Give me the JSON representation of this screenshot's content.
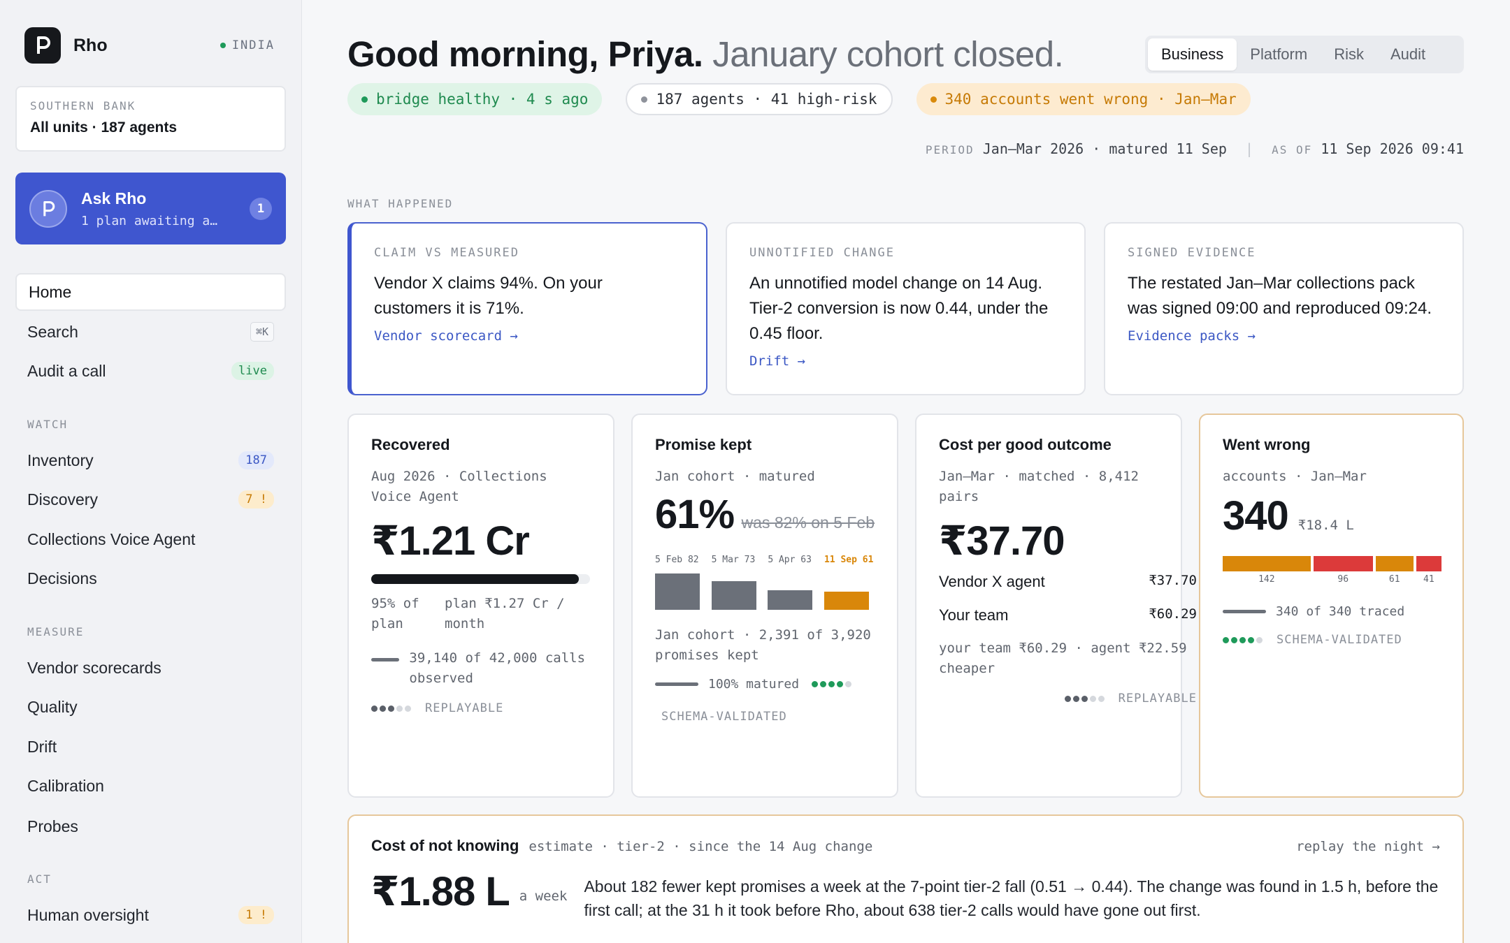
{
  "sidebar": {
    "brand": "Rho",
    "region": "INDIA",
    "org": {
      "label": "SOUTHERN BANK",
      "value": "All units · 187 agents"
    },
    "ask": {
      "title": "Ask Rho",
      "subtitle": "1 plan awaiting a…",
      "badge": "1"
    },
    "top_items": [
      {
        "label": "Home"
      },
      {
        "label": "Search",
        "shortcut": "⌘K"
      },
      {
        "label": "Audit a call",
        "badge": "live"
      }
    ],
    "watch": {
      "label": "WATCH",
      "items": [
        {
          "label": "Inventory",
          "badge": "187"
        },
        {
          "label": "Discovery",
          "badge": "7 !"
        },
        {
          "label": "Collections Voice Agent"
        },
        {
          "label": "Decisions"
        }
      ]
    },
    "measure": {
      "label": "MEASURE",
      "items": [
        {
          "label": "Vendor scorecards"
        },
        {
          "label": "Quality"
        },
        {
          "label": "Drift"
        },
        {
          "label": "Calibration"
        },
        {
          "label": "Probes"
        }
      ]
    },
    "act": {
      "label": "ACT",
      "items": [
        {
          "label": "Human oversight",
          "badge": "1 !"
        }
      ]
    }
  },
  "header": {
    "greeting": "Good morning, Priya.",
    "subtitle": "January cohort closed.",
    "tabs": [
      "Business",
      "Platform",
      "Risk",
      "Audit"
    ],
    "active_tab": "Business",
    "status": [
      {
        "text": "bridge healthy · 4 s ago",
        "tone": "ok"
      },
      {
        "text": "187 agents · 41 high-risk",
        "tone": "neutral"
      },
      {
        "text": "340 accounts went wrong · Jan–Mar",
        "tone": "warn"
      }
    ],
    "period_key": "PERIOD",
    "period_value": "Jan–Mar 2026 · matured 11 Sep",
    "asof_key": "AS OF",
    "asof_value": "11 Sep 2026 09:41"
  },
  "what_happened": {
    "label": "WHAT HAPPENED",
    "cards": [
      {
        "label": "CLAIM VS MEASURED",
        "text": "Vendor X claims 94%. On your customers it is 71%.",
        "link": "Vendor scorecard →"
      },
      {
        "label": "UNNOTIFIED CHANGE",
        "text": "An unnotified model change on 14 Aug. Tier-2 conversion is now 0.44, under the 0.45 floor.",
        "link": "Drift →"
      },
      {
        "label": "SIGNED EVIDENCE",
        "text": "The restated Jan–Mar collections pack was signed 09:00 and reproduced 09:24.",
        "link": "Evidence packs →"
      }
    ]
  },
  "metrics": {
    "recovered": {
      "title": "Recovered",
      "subtitle": "Aug 2026 · Collections Voice Agent",
      "value": "₹1.21 Cr",
      "progress": 0.95,
      "pct_label": "95% of plan",
      "plan_label": "plan ₹1.27 Cr / month",
      "calls": "39,140 of 42,000 calls observed",
      "meta": "REPLAYABLE",
      "dots_filled": 3
    },
    "promise": {
      "title": "Promise kept",
      "subtitle": "Jan cohort · matured",
      "value": "61%",
      "was": "was 82% on 5 Feb",
      "bars": [
        {
          "label": "5 Feb",
          "value": 82
        },
        {
          "label": "5 Mar",
          "value": 73
        },
        {
          "label": "5 Apr",
          "value": 63
        },
        {
          "label": "11 Sep",
          "value": 61
        }
      ],
      "detail": "Jan cohort · 2,391 of 3,920 promises kept",
      "matured": "100% matured",
      "meta": "SCHEMA-VALIDATED",
      "dots_filled": 4
    },
    "cost": {
      "title": "Cost per good outcome",
      "subtitle": "Jan–Mar · matched · 8,412 pairs",
      "value": "₹37.70",
      "rows": [
        {
          "label": "Vendor X agent",
          "value": "₹37.70"
        },
        {
          "label": "Your team",
          "value": "₹60.29"
        }
      ],
      "note": "your team ₹60.29 · agent ₹22.59 cheaper",
      "meta": "REPLAYABLE",
      "dots_filled": 3
    },
    "wrong": {
      "title": "Went wrong",
      "subtitle": "accounts · Jan–Mar",
      "value": "340",
      "amount": "₹18.4 L",
      "segments": [
        {
          "value": 142,
          "color": "#d9870a"
        },
        {
          "value": 96,
          "color": "#dc3a3a"
        },
        {
          "value": 61,
          "color": "#d9870a"
        },
        {
          "value": 41,
          "color": "#dc3a3a"
        }
      ],
      "traced": "340 of 340 traced",
      "meta": "SCHEMA-VALIDATED",
      "dots_filled": 4
    }
  },
  "cost_of_not_knowing": {
    "title": "Cost of not knowing",
    "context": "estimate · tier-2 · since the 14 Aug change",
    "link": "replay the night →",
    "value": "₹1.88 L",
    "unit": "a week",
    "text": "About 182 fewer kept promises a week at the 7-point tier-2 fall (0.51 → 0.44). The change was found in 1.5 h, before the first call; at the 31 h it took before Rho, about 638 tier-2 calls would have gone out first."
  },
  "colors": {
    "accent": "#3f56cf",
    "ok": "#1f9a5a",
    "warn": "#d9870a",
    "danger": "#dc3a3a",
    "ink": "#16181c"
  }
}
